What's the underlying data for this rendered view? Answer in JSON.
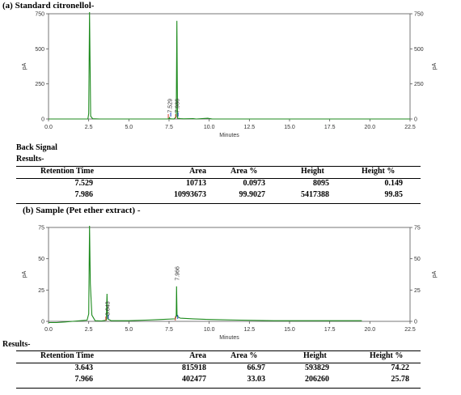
{
  "chart_data": [
    {
      "type": "line",
      "title": "(a) Standard citronellol-",
      "xlabel": "Minutes",
      "ylabel": "pA",
      "xlim": [
        0,
        22.5
      ],
      "ylim": [
        0,
        750
      ],
      "x_ticks": [
        "0.0",
        "2.5",
        "5.0",
        "7.5",
        "10.0",
        "12.5",
        "15.0",
        "17.5",
        "20.0",
        "22.5"
      ],
      "y_ticks": [
        "0",
        "250",
        "500",
        "750"
      ],
      "x_tick_values": [
        0,
        2.5,
        5,
        7.5,
        10,
        12.5,
        15,
        17.5,
        20,
        22.5
      ],
      "y_tick_values": [
        0,
        250,
        500,
        750
      ],
      "color": "#1c8a1c",
      "trace": [
        [
          0,
          0
        ],
        [
          2.45,
          0
        ],
        [
          2.5,
          40
        ],
        [
          2.55,
          770
        ],
        [
          2.62,
          20
        ],
        [
          2.75,
          2
        ],
        [
          3.2,
          0
        ],
        [
          7.4,
          0
        ],
        [
          7.5,
          3
        ],
        [
          7.53,
          10
        ],
        [
          7.56,
          2
        ],
        [
          7.8,
          0
        ],
        [
          7.95,
          15
        ],
        [
          7.99,
          700
        ],
        [
          8.03,
          5
        ],
        [
          8.2,
          3
        ],
        [
          8.4,
          1
        ],
        [
          9.0,
          3
        ],
        [
          9.2,
          0
        ],
        [
          9.9,
          5
        ],
        [
          10.2,
          0
        ],
        [
          10.5,
          0
        ],
        [
          11,
          0
        ],
        [
          12.5,
          0
        ],
        [
          22.5,
          0
        ]
      ],
      "peak_labels": [
        {
          "x": 7.529,
          "y": 20,
          "text": "7.529"
        },
        {
          "x": 7.986,
          "y": 20,
          "text": "7.986"
        }
      ]
    },
    {
      "type": "line",
      "title": "(b) Sample (Pet ether extract) -",
      "xlabel": "Minutes",
      "ylabel": "pA",
      "xlim": [
        0,
        22.5
      ],
      "ylim": [
        0,
        75
      ],
      "x_ticks": [
        "0.0",
        "2.5",
        "5.0",
        "7.5",
        "10.0",
        "12.5",
        "15.0",
        "17.5",
        "20.0",
        "22.5"
      ],
      "y_ticks": [
        "0",
        "25",
        "50",
        "75"
      ],
      "x_tick_values": [
        0,
        2.5,
        5,
        7.5,
        10,
        12.5,
        15,
        17.5,
        20,
        22.5
      ],
      "y_tick_values": [
        0,
        25,
        50,
        75
      ],
      "color": "#1c8a1c",
      "trace": [
        [
          0,
          -1
        ],
        [
          0.5,
          -1
        ],
        [
          1,
          -0.5
        ],
        [
          1.5,
          0
        ],
        [
          2,
          0.5
        ],
        [
          2.4,
          1
        ],
        [
          2.5,
          6
        ],
        [
          2.55,
          85
        ],
        [
          2.6,
          30
        ],
        [
          2.7,
          5
        ],
        [
          2.9,
          0.5
        ],
        [
          3.3,
          0.3
        ],
        [
          3.6,
          1
        ],
        [
          3.64,
          22
        ],
        [
          3.68,
          2
        ],
        [
          3.9,
          0.5
        ],
        [
          5,
          0.5
        ],
        [
          6,
          1
        ],
        [
          7,
          1.5
        ],
        [
          7.9,
          2
        ],
        [
          7.95,
          5
        ],
        [
          7.97,
          28
        ],
        [
          8.0,
          4
        ],
        [
          8.2,
          2.5
        ],
        [
          9,
          2
        ],
        [
          10,
          1.5
        ],
        [
          12,
          1
        ],
        [
          14,
          0.5
        ],
        [
          16,
          0.5
        ],
        [
          18,
          0.5
        ],
        [
          19.5,
          0.5
        ]
      ],
      "peak_labels": [
        {
          "x": 3.643,
          "y": 2,
          "text": "3.643"
        },
        {
          "x": 7.966,
          "y": 30,
          "text": "7.966"
        }
      ]
    }
  ],
  "section_a": {
    "back_signal": "Back Signal",
    "results_label": "Results-",
    "table": {
      "headers": [
        "Retention Time",
        "Area",
        "Area %",
        "Height",
        "Height %"
      ],
      "rows": [
        [
          "7.529",
          "10713",
          "0.0973",
          "8095",
          "0.149"
        ],
        [
          "7.986",
          "10993673",
          "99.9027",
          "5417388",
          "99.85"
        ]
      ]
    }
  },
  "section_b": {
    "results_label": "Results-",
    "table": {
      "headers": [
        "Retention Time",
        "Area",
        "Area %",
        "Height",
        "Height %"
      ],
      "rows": [
        [
          "3.643",
          "815918",
          "66.97",
          "593829",
          "74.22"
        ],
        [
          "7.966",
          "402477",
          "33.03",
          "206260",
          "25.78"
        ]
      ]
    }
  }
}
